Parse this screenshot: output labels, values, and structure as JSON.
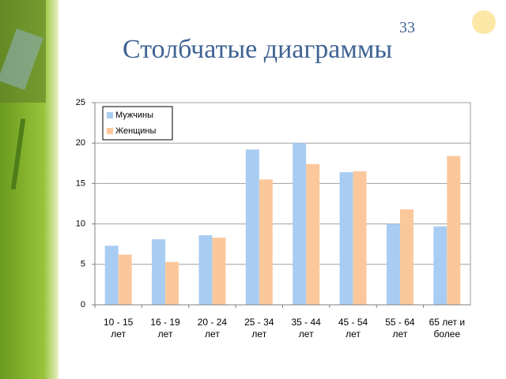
{
  "page_number": "33",
  "title": "Столбчатые диаграммы",
  "chart_data": {
    "type": "bar",
    "categories": [
      "10 - 15\nлет",
      "16 - 19\nлет",
      "20 - 24\nлет",
      "25 - 34\nлет",
      "35 - 44\nлет",
      "45 - 54\nлет",
      "55 - 64\nлет",
      "65 лет и\nболее"
    ],
    "series": [
      {
        "name": "Мужчины",
        "color": "#a9cdf2",
        "values": [
          7.3,
          8.1,
          8.6,
          19.2,
          20.0,
          16.4,
          10.0,
          9.7
        ]
      },
      {
        "name": "Женщины",
        "color": "#fbc89c",
        "values": [
          6.2,
          5.3,
          8.3,
          15.5,
          17.4,
          16.5,
          11.8,
          18.4
        ]
      }
    ],
    "ylim": [
      0,
      25
    ],
    "yticks": [
      0,
      5,
      10,
      15,
      20,
      25
    ],
    "grid": true,
    "legend": "top-left"
  }
}
